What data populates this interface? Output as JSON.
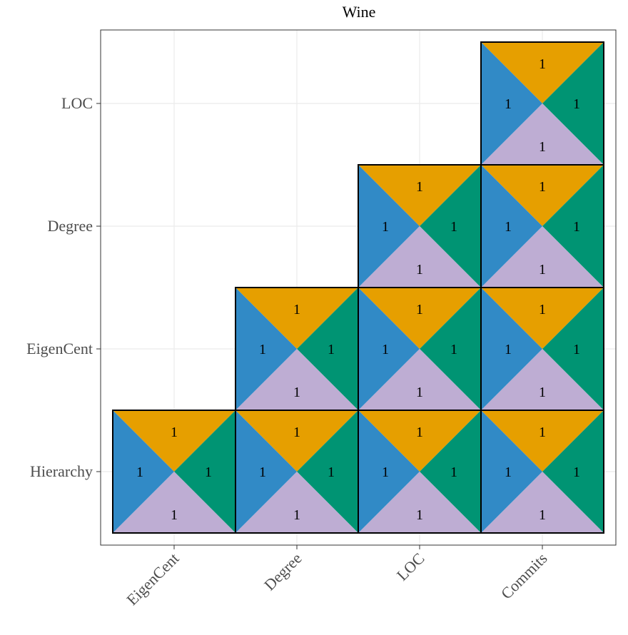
{
  "chart_data": {
    "type": "heatmap",
    "title": "Wine",
    "xlabel": "",
    "ylabel": "",
    "x_categories": [
      "EigenCent",
      "Degree",
      "LOC",
      "Commits"
    ],
    "y_categories": [
      "Hierarchy",
      "EigenCent",
      "Degree",
      "LOC"
    ],
    "grid": true,
    "triangle_colors": {
      "top": "#E69F00",
      "right": "#009473",
      "bottom": "#BEADD3",
      "left": "#318AC6"
    },
    "cells": [
      {
        "x": "EigenCent",
        "y": "Hierarchy",
        "top": 1,
        "right": 1,
        "bottom": 1,
        "left": 1
      },
      {
        "x": "Degree",
        "y": "Hierarchy",
        "top": 1,
        "right": 1,
        "bottom": 1,
        "left": 1
      },
      {
        "x": "LOC",
        "y": "Hierarchy",
        "top": 1,
        "right": 1,
        "bottom": 1,
        "left": 1
      },
      {
        "x": "Commits",
        "y": "Hierarchy",
        "top": 1,
        "right": 1,
        "bottom": 1,
        "left": 1
      },
      {
        "x": "Degree",
        "y": "EigenCent",
        "top": 1,
        "right": 1,
        "bottom": 1,
        "left": 1
      },
      {
        "x": "LOC",
        "y": "EigenCent",
        "top": 1,
        "right": 1,
        "bottom": 1,
        "left": 1
      },
      {
        "x": "Commits",
        "y": "EigenCent",
        "top": 1,
        "right": 1,
        "bottom": 1,
        "left": 1
      },
      {
        "x": "LOC",
        "y": "Degree",
        "top": 1,
        "right": 1,
        "bottom": 1,
        "left": 1
      },
      {
        "x": "Commits",
        "y": "Degree",
        "top": 1,
        "right": 1,
        "bottom": 1,
        "left": 1
      },
      {
        "x": "Commits",
        "y": "LOC",
        "top": 1,
        "right": 1,
        "bottom": 1,
        "left": 1
      }
    ]
  }
}
